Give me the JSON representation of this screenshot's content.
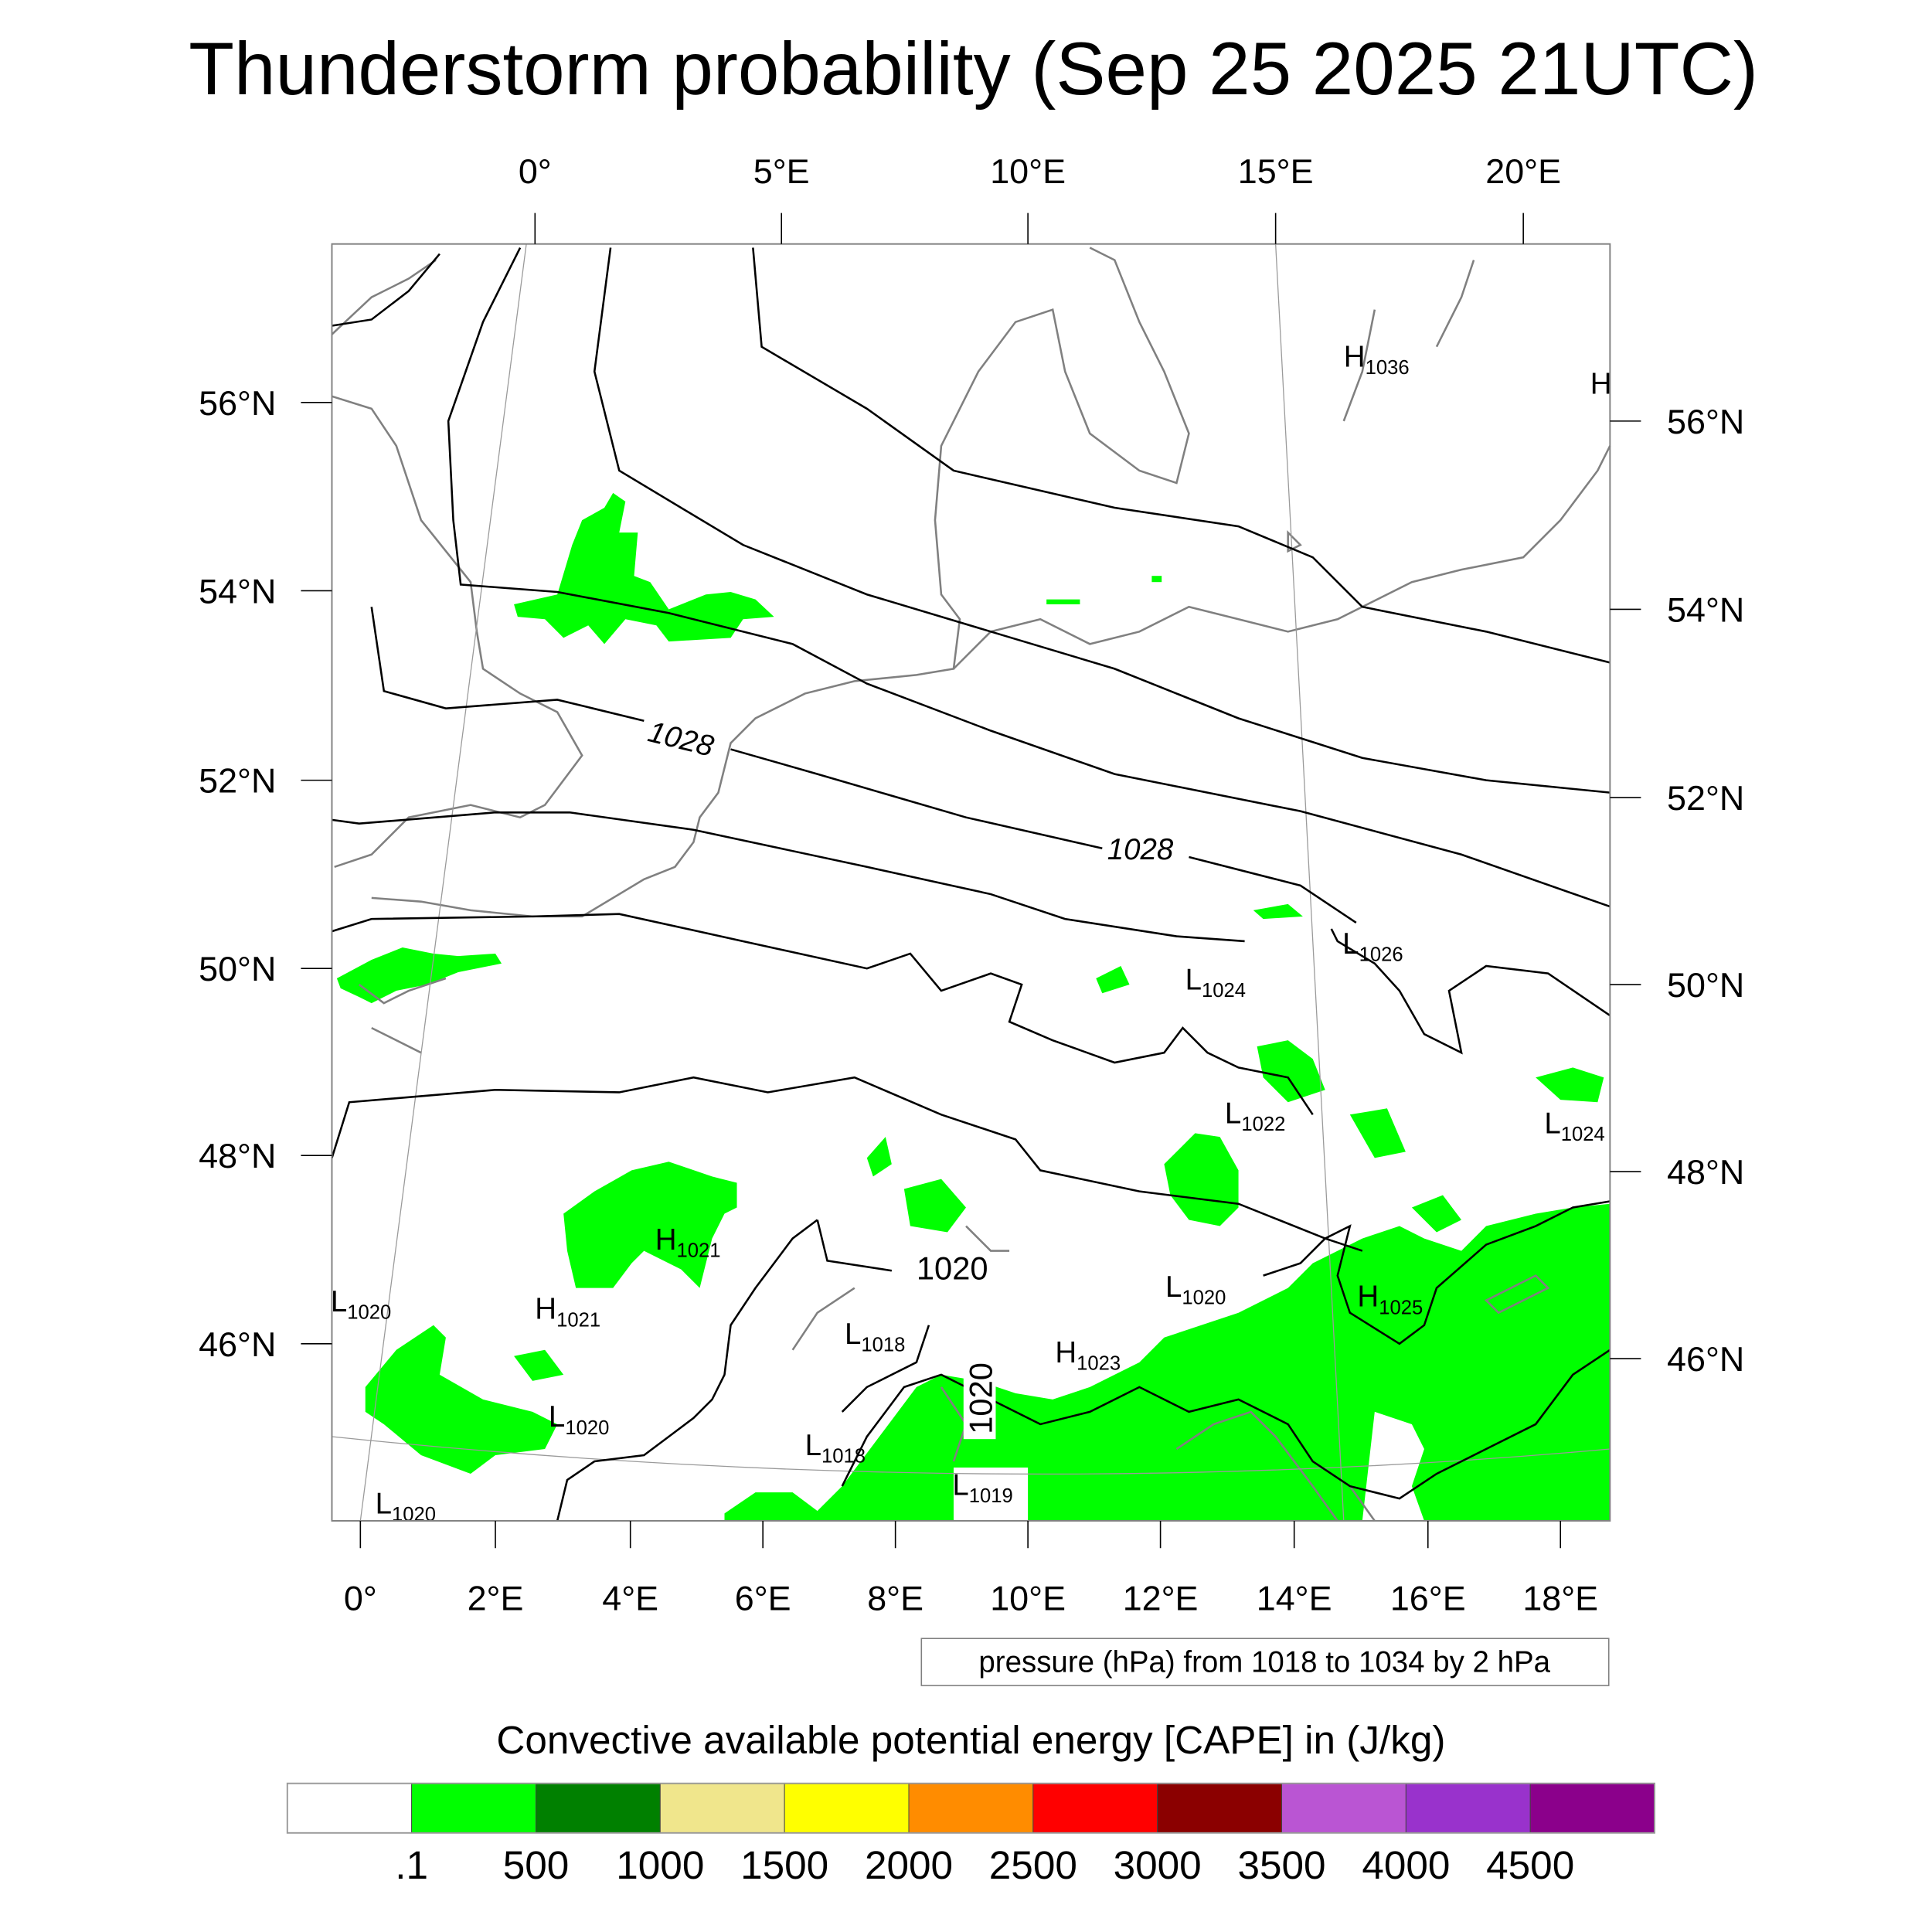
{
  "title": "Thunderstorm probability (Sep 25 2025 21UTC)",
  "axes": {
    "top_lon": [
      "0°",
      "5°E",
      "10°E",
      "15°E",
      "20°E"
    ],
    "left_lat": [
      "56°N",
      "54°N",
      "52°N",
      "50°N",
      "48°N",
      "46°N"
    ],
    "right_lat": [
      "56°N",
      "54°N",
      "52°N",
      "50°N",
      "48°N",
      "46°N"
    ],
    "bottom_lon": [
      "0°",
      "2°E",
      "4°E",
      "6°E",
      "8°E",
      "10°E",
      "12°E",
      "14°E",
      "16°E",
      "18°E"
    ]
  },
  "pressure_centers": [
    {
      "letter": "H",
      "value": "1036"
    },
    {
      "letter": "H",
      "value": ""
    },
    {
      "letter": "L",
      "value": "1026"
    },
    {
      "letter": "L",
      "value": "1024"
    },
    {
      "letter": "L",
      "value": "1022"
    },
    {
      "letter": "L",
      "value": "1024"
    },
    {
      "letter": "H",
      "value": "1021"
    },
    {
      "letter": "H",
      "value": "1021"
    },
    {
      "letter": "L",
      "value": "1020"
    },
    {
      "letter": "L",
      "value": "1020"
    },
    {
      "letter": "H",
      "value": "1025"
    },
    {
      "letter": "L",
      "value": "1018"
    },
    {
      "letter": "H",
      "value": "1023"
    },
    {
      "letter": "L",
      "value": "1020"
    },
    {
      "letter": "L",
      "value": "1018"
    },
    {
      "letter": "L",
      "value": "1019"
    },
    {
      "letter": "L",
      "value": "1020"
    }
  ],
  "contour_labels": [
    "1028",
    "1028",
    "1020",
    "1020"
  ],
  "contour_legend": "pressure (hPa) from 1018 to 1034 by 2 hPa",
  "colorbar": {
    "title": "Convective available potential energy [CAPE] in (J/kg)",
    "colors": [
      "#ffffff",
      "#00ff00",
      "#008000",
      "#f0e68c",
      "#ffff00",
      "#ff8c00",
      "#ff0000",
      "#8b0000",
      "#ba55d3",
      "#9932cc",
      "#8b008b"
    ],
    "labels": [
      ".1",
      "500",
      "1000",
      "1500",
      "2000",
      "2500",
      "3000",
      "3500",
      "4000",
      "4500"
    ]
  },
  "chart_data": {
    "type": "heatmap",
    "title": "Thunderstorm probability (Sep 25 2025 21UTC)",
    "field": "CAPE (J/kg)",
    "levels": [
      0.1,
      500,
      1000,
      1500,
      2000,
      2500,
      3000,
      3500,
      4000,
      4500
    ],
    "contours": {
      "variable": "pressure (hPa)",
      "min": 1018,
      "max": 1034,
      "interval": 2
    },
    "lon_range": [
      -0.5,
      19
    ],
    "lat_range": [
      44.5,
      57.5
    ]
  }
}
